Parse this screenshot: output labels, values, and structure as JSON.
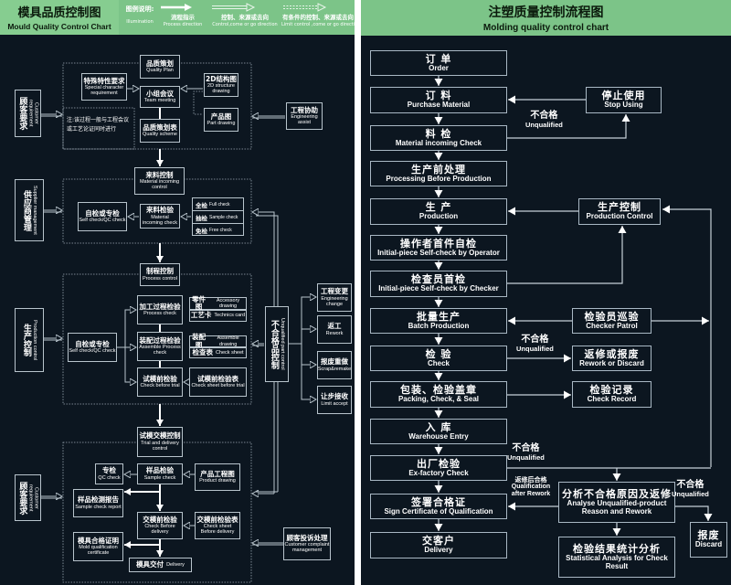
{
  "left": {
    "title_zh": "模具品质控制图",
    "title_en": "Mould Quality Control Chart",
    "legend": {
      "label_zh": "图例说明:",
      "label_en": "Illumination",
      "items": [
        {
          "zh": "流程指示",
          "en": "Process direction"
        },
        {
          "zh": "控制、来源或去向",
          "en": "Control,come or go direction"
        },
        {
          "zh": "有条件的控制、来源或去向",
          "en": "Limit control ,come or go direction"
        }
      ]
    },
    "note": "注:该过程一般与工程会议或工艺论证同时进行",
    "options": [
      {
        "zh": "全检",
        "en": "Full check"
      },
      {
        "zh": "抽检",
        "en": "Sample check"
      },
      {
        "zh": "免检",
        "en": "Free check"
      }
    ],
    "nodes": {
      "quality_plan": {
        "zh": "品质策划",
        "en": "Quality Plan"
      },
      "special_req": {
        "zh": "特殊特性要求",
        "en": "Special character requirement"
      },
      "team_meeting": {
        "zh": "小组会议",
        "en": "Team meeting"
      },
      "structure_2d": {
        "zh": "2D结构图",
        "en": "2D structure drawing"
      },
      "part_drawing": {
        "zh": "产品图",
        "en": "Part drawing"
      },
      "quality_scheme": {
        "zh": "品质策划表",
        "en": "Quality scheme"
      },
      "customer_req_1": {
        "zh": "顾客要求",
        "en": "Customer requirement"
      },
      "engineering_assist": {
        "zh": "工程协助",
        "en": "Engineering assist"
      },
      "material_control": {
        "zh": "来料控制",
        "en": "Material incoming control"
      },
      "supplier": {
        "zh": "供应商管理",
        "en": "Supplier management"
      },
      "self_check_1": {
        "zh": "自检或专检",
        "en": "Self check/QC check"
      },
      "material_check": {
        "zh": "来料检验",
        "en": "Material incoming check"
      },
      "process_control": {
        "zh": "制程控制",
        "en": "Process control"
      },
      "production_control": {
        "zh": "生产控制",
        "en": "Production control"
      },
      "self_check_2": {
        "zh": "自检或专检",
        "en": "Self check/QC check"
      },
      "process_check": {
        "zh": "加工过程检验",
        "en": "Process check"
      },
      "accessory": {
        "zh": "零件图",
        "en": "Accessory drawing"
      },
      "technics": {
        "zh": "工艺卡",
        "en": "Technics card"
      },
      "assemble_check": {
        "zh": "装配过程检验",
        "en": "Assemble Process check"
      },
      "assemble_drawing": {
        "zh": "装配图",
        "en": "Assemble drawing"
      },
      "check_sheet": {
        "zh": "检查表",
        "en": "Check sheet"
      },
      "trial_check": {
        "zh": "试模前检验",
        "en": "Check before trial"
      },
      "trial_sheet": {
        "zh": "试模前检验表",
        "en": "Check sheet before trial"
      },
      "unqualified_ctrl": {
        "zh": "不合格品控制",
        "en": "Unqualified part control"
      },
      "eng_change": {
        "zh": "工程变更",
        "en": "Engineering change"
      },
      "rework": {
        "zh": "返工",
        "en": "Rework"
      },
      "scrap": {
        "zh": "报废重做",
        "en": "Scrap&remake"
      },
      "limit_accept": {
        "zh": "让步接收",
        "en": "Limit accept"
      },
      "trial_delivery": {
        "zh": "试模交模控制",
        "en": "Trial and delivery control"
      },
      "qc_check": {
        "zh": "专检",
        "en": "QC check"
      },
      "sample_check": {
        "zh": "样品检验",
        "en": "Sample check"
      },
      "product_drawing": {
        "zh": "产品工程图",
        "en": "Product drawing"
      },
      "sample_report": {
        "zh": "样品检测报告",
        "en": "Sample check report"
      },
      "delivery_check": {
        "zh": "交模前检验",
        "en": "Check Before delivery"
      },
      "delivery_sheet": {
        "zh": "交模前检验表",
        "en": "Check sheet Before delivery"
      },
      "mold_cert": {
        "zh": "模具合格证明",
        "en": "Mold qualification certificate"
      },
      "mold_delivery": {
        "zh": "模具交付",
        "en": "Delivery"
      },
      "customer_req_2": {
        "zh": "顾客要求",
        "en": "Customer requirement"
      },
      "complaint": {
        "zh": "顾客投诉处理",
        "en": "Customer complaint management"
      }
    }
  },
  "right": {
    "title_zh": "注塑质量控制流程图",
    "title_en": "Molding quality control chart",
    "labels": {
      "unq1": {
        "zh": "不合格",
        "en": "Unqualified"
      },
      "unq2": {
        "zh": "不合格",
        "en": "Unqualified"
      },
      "unq3": {
        "zh": "不合格",
        "en": "Unqualified"
      },
      "rework_ok": {
        "zh": "返修后合格",
        "en": "Qualification after Rework"
      },
      "unq4": {
        "zh": "不合格",
        "en": "Unqualified"
      }
    },
    "nodes": {
      "order": {
        "zh": "订 单",
        "en": "Order"
      },
      "purchase": {
        "zh": "订 料",
        "en": "Purchase Material"
      },
      "stop": {
        "zh": "停止使用",
        "en": "Stop Using"
      },
      "mat_check": {
        "zh": "料 检",
        "en": "Material incoming Check"
      },
      "pre": {
        "zh": "生产前处理",
        "en": "Processing Before Production"
      },
      "production": {
        "zh": "生 产",
        "en": "Production"
      },
      "prod_ctrl": {
        "zh": "生产控制",
        "en": "Production Control"
      },
      "operator": {
        "zh": "操作者首件自检",
        "en": "Initial-piece Self-check by Operator"
      },
      "checker": {
        "zh": "检查员首检",
        "en": "Initial-piece Self-check by Checker"
      },
      "batch": {
        "zh": "批量生产",
        "en": "Batch Production"
      },
      "patrol": {
        "zh": "检验员巡验",
        "en": "Checker Patrol"
      },
      "check": {
        "zh": "检 验",
        "en": "Check"
      },
      "rework": {
        "zh": "返修或报废",
        "en": "Rework or Discard"
      },
      "packing": {
        "zh": "包装、检验盖章",
        "en": "Packing, Check, & Seal"
      },
      "record": {
        "zh": "检验记录",
        "en": "Check Record"
      },
      "warehouse": {
        "zh": "入 库",
        "en": "Warehouse Entry"
      },
      "exfactory": {
        "zh": "出厂检验",
        "en": "Ex-factory Check"
      },
      "sign": {
        "zh": "签署合格证",
        "en": "Sign Certificate of Qualification"
      },
      "delivery": {
        "zh": "交客户",
        "en": "Delivery"
      },
      "analyse": {
        "zh": "分析不合格原因及返修",
        "en": "Analyse Unqualified-product Reason and Rework"
      },
      "stats": {
        "zh": "检验结果统计分析",
        "en": "Statistical Analysis for Check Result"
      },
      "discard": {
        "zh": "报废",
        "en": "Discard"
      }
    }
  },
  "colors": {
    "background": "#0c1620",
    "header": "#7cc488",
    "line": "#b8c4cc"
  }
}
